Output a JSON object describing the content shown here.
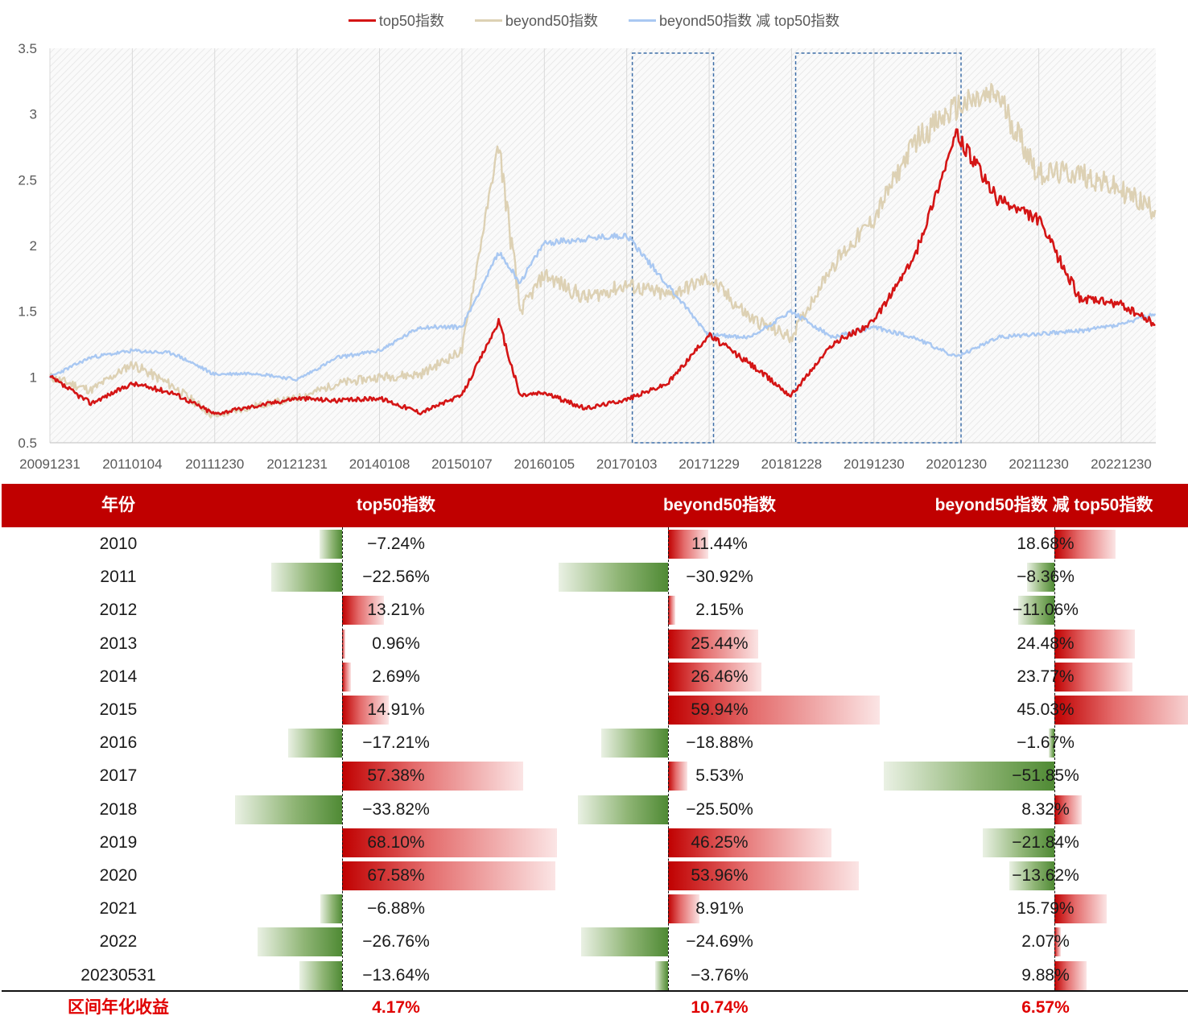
{
  "chart_data": {
    "type": "line",
    "series": [
      {
        "name": "top50指数",
        "color": "#d41515"
      },
      {
        "name": "beyond50指数",
        "color": "#ddd1b4"
      },
      {
        "name": "beyond50指数 减 top50指数",
        "color": "#a9c8f2"
      }
    ],
    "x_ticks": [
      "20091231",
      "20110104",
      "20111230",
      "20121231",
      "20140108",
      "20150107",
      "20160105",
      "20170103",
      "20171229",
      "20181228",
      "20191230",
      "20201230",
      "20211230",
      "20221230"
    ],
    "y_ticks": [
      "0.5",
      "1",
      "1.5",
      "2",
      "2.5",
      "3",
      "3.5"
    ],
    "ylim": [
      0.5,
      3.5
    ],
    "grid": "vertical",
    "legend": "top",
    "highlight_boxes": [
      {
        "from": "20170103",
        "to": "20171229"
      },
      {
        "from": "20181228",
        "to": "20201230"
      }
    ],
    "approx_points": {
      "x": [
        "20091231",
        "20100630",
        "20101231",
        "20110630",
        "20111230",
        "20120630",
        "20121231",
        "20130630",
        "20131231",
        "20140630",
        "20141231",
        "20150612",
        "20150915",
        "20151231",
        "20160630",
        "20161230",
        "20170630",
        "20171229",
        "20180630",
        "20181228",
        "20190630",
        "20191230",
        "20200630",
        "20201230",
        "20210630",
        "20211230",
        "20220630",
        "20221230",
        "20230531"
      ],
      "top50": [
        1.0,
        0.8,
        0.95,
        0.88,
        0.72,
        0.78,
        0.84,
        0.82,
        0.84,
        0.73,
        0.86,
        1.42,
        0.86,
        0.88,
        0.76,
        0.83,
        0.95,
        1.32,
        1.1,
        0.86,
        1.25,
        1.42,
        1.92,
        2.85,
        2.35,
        2.2,
        1.6,
        1.55,
        1.4
      ],
      "beyond50": [
        1.0,
        0.9,
        1.1,
        0.93,
        0.7,
        0.78,
        0.84,
        0.95,
        1.0,
        1.02,
        1.2,
        2.78,
        1.5,
        1.78,
        1.6,
        1.7,
        1.62,
        1.75,
        1.45,
        1.3,
        1.85,
        2.2,
        2.8,
        3.05,
        3.15,
        2.55,
        2.55,
        2.42,
        2.27
      ],
      "diff": [
        1.0,
        1.15,
        1.2,
        1.18,
        1.02,
        1.03,
        0.98,
        1.15,
        1.2,
        1.38,
        1.38,
        1.95,
        1.72,
        2.02,
        2.05,
        2.08,
        1.7,
        1.32,
        1.3,
        1.5,
        1.3,
        1.38,
        1.3,
        1.15,
        1.3,
        1.33,
        1.35,
        1.4,
        1.48
      ]
    }
  },
  "table": {
    "headers": [
      "年份",
      "top50指数",
      "beyond50指数",
      "beyond50指数 减 top50指数"
    ],
    "rows": [
      {
        "year": "2010",
        "top50": -7.24,
        "beyond50": 11.44,
        "diff": 18.68,
        "top50_label": "−7.24%",
        "beyond50_label": "11.44%",
        "diff_label": "18.68%"
      },
      {
        "year": "2011",
        "top50": -22.56,
        "beyond50": -30.92,
        "diff": -8.36,
        "top50_label": "−22.56%",
        "beyond50_label": "−30.92%",
        "diff_label": "−8.36%"
      },
      {
        "year": "2012",
        "top50": 13.21,
        "beyond50": 2.15,
        "diff": -11.06,
        "top50_label": "13.21%",
        "beyond50_label": "2.15%",
        "diff_label": "−11.06%"
      },
      {
        "year": "2013",
        "top50": 0.96,
        "beyond50": 25.44,
        "diff": 24.48,
        "top50_label": "0.96%",
        "beyond50_label": "25.44%",
        "diff_label": "24.48%"
      },
      {
        "year": "2014",
        "top50": 2.69,
        "beyond50": 26.46,
        "diff": 23.77,
        "top50_label": "2.69%",
        "beyond50_label": "26.46%",
        "diff_label": "23.77%"
      },
      {
        "year": "2015",
        "top50": 14.91,
        "beyond50": 59.94,
        "diff": 45.03,
        "top50_label": "14.91%",
        "beyond50_label": "59.94%",
        "diff_label": "45.03%"
      },
      {
        "year": "2016",
        "top50": -17.21,
        "beyond50": -18.88,
        "diff": -1.67,
        "top50_label": "−17.21%",
        "beyond50_label": "−18.88%",
        "diff_label": "−1.67%"
      },
      {
        "year": "2017",
        "top50": 57.38,
        "beyond50": 5.53,
        "diff": -51.85,
        "top50_label": "57.38%",
        "beyond50_label": "5.53%",
        "diff_label": "−51.85%"
      },
      {
        "year": "2018",
        "top50": -33.82,
        "beyond50": -25.5,
        "diff": 8.32,
        "top50_label": "−33.82%",
        "beyond50_label": "−25.50%",
        "diff_label": "8.32%"
      },
      {
        "year": "2019",
        "top50": 68.1,
        "beyond50": 46.25,
        "diff": -21.84,
        "top50_label": "68.10%",
        "beyond50_label": "46.25%",
        "diff_label": "−21.84%"
      },
      {
        "year": "2020",
        "top50": 67.58,
        "beyond50": 53.96,
        "diff": -13.62,
        "top50_label": "67.58%",
        "beyond50_label": "53.96%",
        "diff_label": "−13.62%"
      },
      {
        "year": "2021",
        "top50": -6.88,
        "beyond50": 8.91,
        "diff": 15.79,
        "top50_label": "−6.88%",
        "beyond50_label": "8.91%",
        "diff_label": "15.79%"
      },
      {
        "year": "2022",
        "top50": -26.76,
        "beyond50": -24.69,
        "diff": 2.07,
        "top50_label": "−26.76%",
        "beyond50_label": "−24.69%",
        "diff_label": "2.07%"
      },
      {
        "year": "20230531",
        "top50": -13.64,
        "beyond50": -3.76,
        "diff": 9.88,
        "top50_label": "−13.64%",
        "beyond50_label": "−3.76%",
        "diff_label": "9.88%"
      }
    ],
    "footer": {
      "label": "区间年化收益",
      "top50": "4.17%",
      "beyond50": "10.74%",
      "diff": "6.57%"
    }
  },
  "colors": {
    "header_bg": "#c00000",
    "positive": "#c00000",
    "negative": "#4f8a34",
    "footer_text": "#e00000"
  }
}
